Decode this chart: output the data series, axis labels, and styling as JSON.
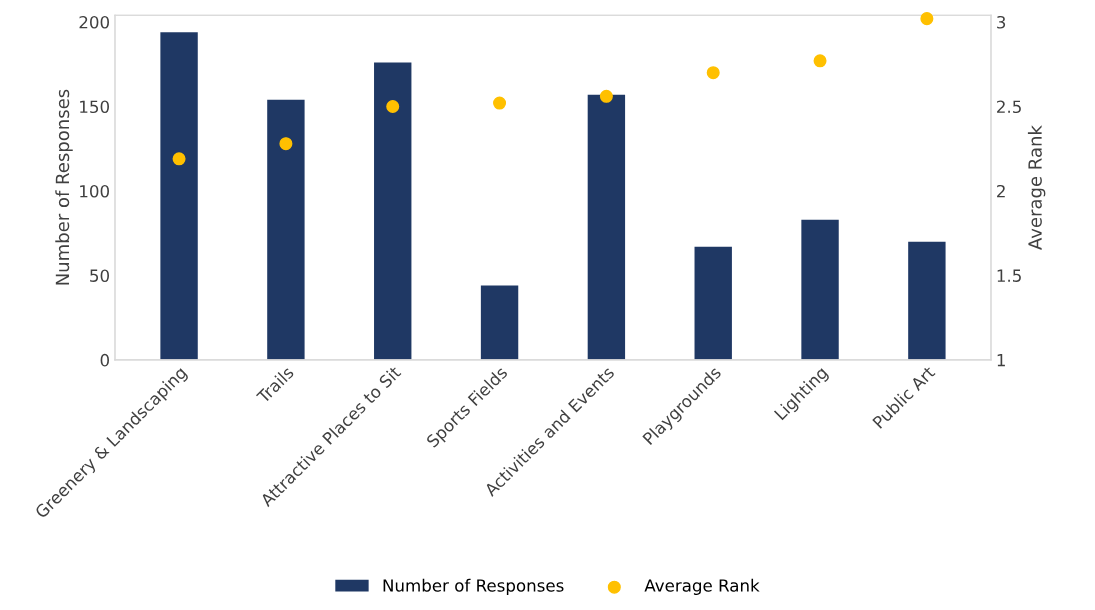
{
  "chart_data": {
    "type": "bar",
    "ylabel": "Number of Responses",
    "y2label": "Average Rank",
    "categories": [
      "Greenery & Landscaping",
      "Trails",
      "Attractive Places to Sit",
      "Sports Fields",
      "Activities and Events",
      "Playgrounds",
      "Lighting",
      "Public Art"
    ],
    "series": [
      {
        "name": "Number of Responses",
        "color": "#1f3864",
        "values": [
          194,
          154,
          176,
          44,
          157,
          67,
          83,
          70
        ]
      },
      {
        "name": "Average Rank",
        "type": "scatter",
        "axis": "y2",
        "color": "#ffc000",
        "marker": "circle",
        "values": [
          2.19,
          2.28,
          2.5,
          2.52,
          2.56,
          2.7,
          2.77,
          3.02
        ]
      }
    ],
    "ylim": [
      0,
      204
    ],
    "yticks": [
      0,
      50,
      100,
      150,
      200
    ],
    "y2lim": [
      1,
      3.04
    ],
    "y2ticks": [
      1,
      1.5,
      2,
      2.5,
      3
    ],
    "grid": false,
    "legend": "bottom"
  }
}
